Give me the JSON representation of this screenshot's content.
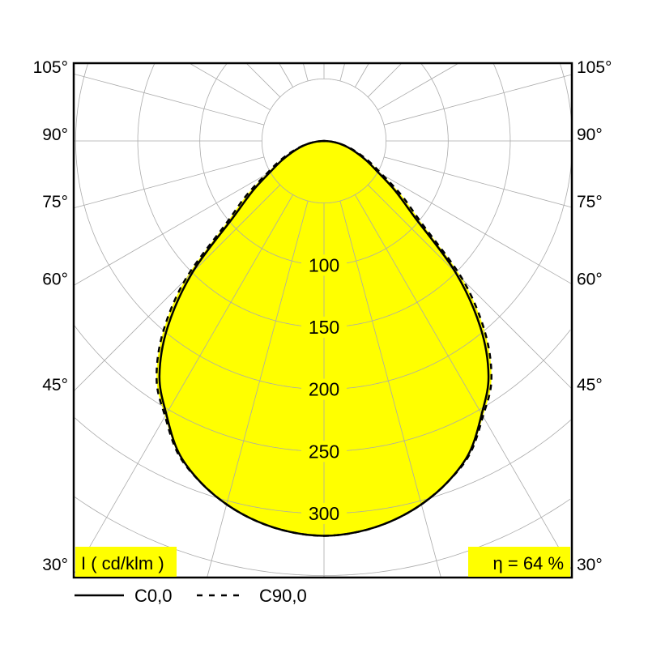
{
  "chart_data": {
    "type": "polar",
    "unit_label": "I ( cd/klm )",
    "efficiency_label": "η = 64 %",
    "radial_ticks": [
      100,
      150,
      200,
      250,
      300
    ],
    "radial_grid_step": 50,
    "angle_ticks": [
      "105°",
      "90°",
      "75°",
      "60°",
      "45°",
      "30°"
    ],
    "angle_tick_values": [
      105,
      90,
      75,
      60,
      45,
      30
    ],
    "fill_color": "#ffff00",
    "grid_color": "#aaaaaa",
    "grid": true,
    "legend_placement": "bottom",
    "series": [
      {
        "name": "C0,0",
        "style": "solid",
        "angles": [
          0,
          5,
          10,
          15,
          20,
          25,
          30,
          35,
          40,
          45,
          50,
          55,
          60,
          65,
          70,
          75,
          80,
          85,
          90
        ],
        "values": [
          318,
          316,
          311,
          303,
          292,
          277,
          254,
          231,
          196,
          150,
          95,
          70,
          50,
          38,
          28,
          20,
          13,
          6,
          0
        ]
      },
      {
        "name": "C90,0",
        "style": "dashed",
        "angles": [
          0,
          5,
          10,
          15,
          20,
          25,
          30,
          35,
          40,
          45,
          50,
          55,
          60,
          65,
          70,
          75,
          80,
          85,
          90
        ],
        "values": [
          318,
          316,
          311,
          303,
          292,
          278,
          256,
          235,
          202,
          158,
          102,
          76,
          54,
          41,
          30,
          21,
          13,
          6,
          0
        ]
      }
    ]
  }
}
